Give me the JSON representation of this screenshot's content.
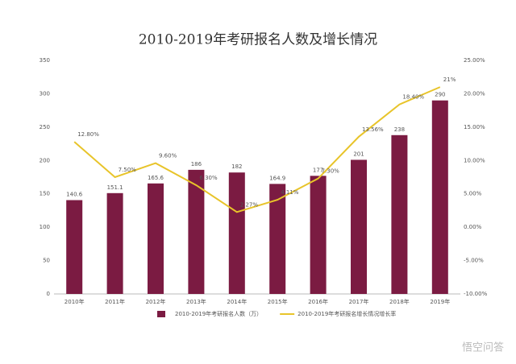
{
  "chart_data": {
    "type": "bar",
    "title": "2010-2019年考研报名人数及增长情况",
    "categories": [
      "2010年",
      "2011年",
      "2012年",
      "2013年",
      "2014年",
      "2015年",
      "2016年",
      "2017年",
      "2018年",
      "2019年"
    ],
    "series": [
      {
        "name": "2010-2019年考研报名人数（万）",
        "type": "bar",
        "color": "#7b1b42",
        "values": [
          140.6,
          151.1,
          165.6,
          186,
          182,
          164.9,
          177,
          201,
          238,
          290
        ]
      },
      {
        "name": "2010-2019年考研报名增长情况增长率",
        "type": "line",
        "axis": "y2",
        "color": "#e8c42a",
        "values": [
          12.8,
          7.5,
          9.6,
          6.3,
          2.27,
          4.11,
          7.3,
          13.56,
          18.4,
          21
        ],
        "value_labels": [
          "12.80%",
          "7.50%",
          "9.60%",
          "6.30%",
          "2.27%",
          "4.11%",
          "7.30%",
          "13.56%",
          "18.40%",
          "21%"
        ]
      }
    ],
    "ylim": [
      0,
      350
    ],
    "yticks": [
      0,
      50,
      100,
      150,
      200,
      250,
      300,
      350
    ],
    "y2lim": [
      -10,
      25
    ],
    "y2ticks": [
      {
        "value": -10,
        "label": "-10.00%"
      },
      {
        "value": -5,
        "label": "-5.00%"
      },
      {
        "value": 0,
        "label": "0.00%"
      },
      {
        "value": 5,
        "label": "5.00%"
      },
      {
        "value": 10,
        "label": "10.00%"
      },
      {
        "value": 15,
        "label": "15.00%"
      },
      {
        "value": 20,
        "label": "20.00%"
      },
      {
        "value": 25,
        "label": "25.00%"
      }
    ],
    "grid": false,
    "legend": "bottom",
    "watermark": "悟空问答"
  }
}
